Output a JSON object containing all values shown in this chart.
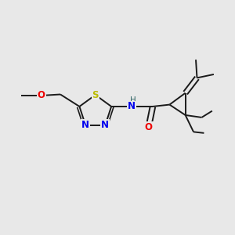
{
  "bg_color": "#e8e8e8",
  "atom_color_C": "#1a1a1a",
  "atom_color_N": "#0000ee",
  "atom_color_O": "#ee0000",
  "atom_color_S": "#bbbb00",
  "atom_color_H": "#336666",
  "bond_color": "#1a1a1a",
  "bond_width": 1.4,
  "figsize": [
    3.0,
    3.0
  ],
  "dpi": 100,
  "xlim": [
    0,
    10
  ],
  "ylim": [
    0,
    10
  ]
}
